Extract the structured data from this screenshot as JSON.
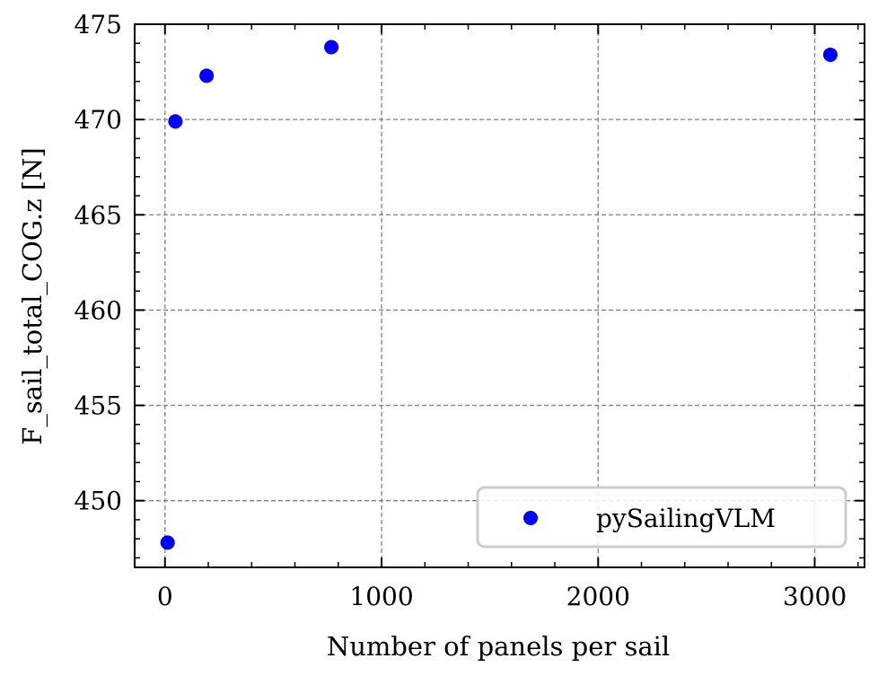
{
  "chart_data": {
    "type": "scatter",
    "title": "",
    "xlabel": "Number of panels per sail",
    "ylabel": "F_sail_total_COG.z [N]",
    "xlim": [
      -140,
      3230
    ],
    "ylim": [
      446.5,
      475
    ],
    "x_ticks": [
      0,
      1000,
      2000,
      3000
    ],
    "x_tick_labels": [
      "0",
      "1000",
      "2000",
      "3000"
    ],
    "y_ticks": [
      450,
      455,
      460,
      465,
      470,
      475
    ],
    "y_tick_labels": [
      "450",
      "455",
      "460",
      "465",
      "470",
      "475"
    ],
    "grid": true,
    "legend_position": "lower-right",
    "series": [
      {
        "name": "pySailingVLM",
        "color": "#0000ff",
        "points": [
          {
            "x": 12,
            "y": 447.8
          },
          {
            "x": 48,
            "y": 469.9
          },
          {
            "x": 192,
            "y": 472.3
          },
          {
            "x": 768,
            "y": 473.8
          },
          {
            "x": 3072,
            "y": 473.4
          }
        ]
      }
    ]
  }
}
